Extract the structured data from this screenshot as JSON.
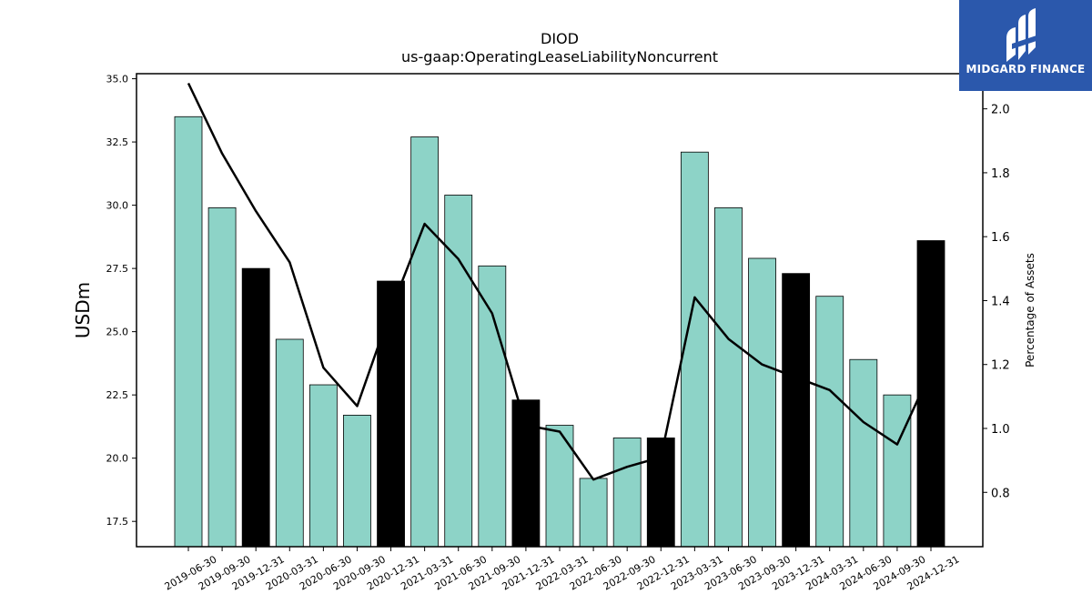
{
  "brand": {
    "name": "MIDGARD FINANCE",
    "bg_color": "#2b58ac",
    "icon": "midgard-logo-icon"
  },
  "chart_data": {
    "type": "bar",
    "title": "DIOD",
    "subtitle": "us-gaap:OperatingLeaseLiabilityNoncurrent",
    "ylabel": "USDm",
    "y2label": "Percentage of Assets",
    "categories": [
      "2019-06-30",
      "2019-09-30",
      "2019-12-31",
      "2020-03-31",
      "2020-06-30",
      "2020-09-30",
      "2020-12-31",
      "2021-03-31",
      "2021-06-30",
      "2021-09-30",
      "2021-12-31",
      "2022-03-31",
      "2022-06-30",
      "2022-09-30",
      "2022-12-31",
      "2023-03-31",
      "2023-06-30",
      "2023-09-30",
      "2023-12-31",
      "2024-03-31",
      "2024-06-30",
      "2024-09-30",
      "2024-12-31"
    ],
    "series": [
      {
        "type": "bar",
        "axis": "left",
        "values": [
          33.5,
          29.9,
          27.5,
          24.7,
          22.9,
          21.7,
          27.0,
          32.7,
          30.4,
          27.6,
          22.3,
          21.3,
          19.2,
          20.8,
          20.8,
          32.1,
          29.9,
          27.9,
          27.3,
          26.4,
          23.9,
          22.5,
          28.6
        ],
        "highlight_indices": [
          2,
          6,
          10,
          14,
          18,
          22
        ],
        "color": "#8dd3c7",
        "highlight_color": "#000000"
      },
      {
        "type": "line",
        "axis": "right",
        "values": [
          2.08,
          1.86,
          1.68,
          1.52,
          1.19,
          1.07,
          1.37,
          1.64,
          1.53,
          1.36,
          1.01,
          0.99,
          0.84,
          0.88,
          0.91,
          1.41,
          1.28,
          1.2,
          1.16,
          1.12,
          1.02,
          0.95,
          1.18
        ],
        "color": "#000000"
      }
    ],
    "ylim": [
      16.5,
      35.2
    ],
    "y2lim": [
      0.63,
      2.11
    ],
    "yticks": [
      "17.5",
      "20.0",
      "22.5",
      "25.0",
      "27.5",
      "30.0",
      "32.5",
      "35.0"
    ],
    "y2ticks": [
      "0.8",
      "1.0",
      "1.2",
      "1.4",
      "1.6",
      "1.8",
      "2.0"
    ],
    "grid": false,
    "legend": "none"
  }
}
